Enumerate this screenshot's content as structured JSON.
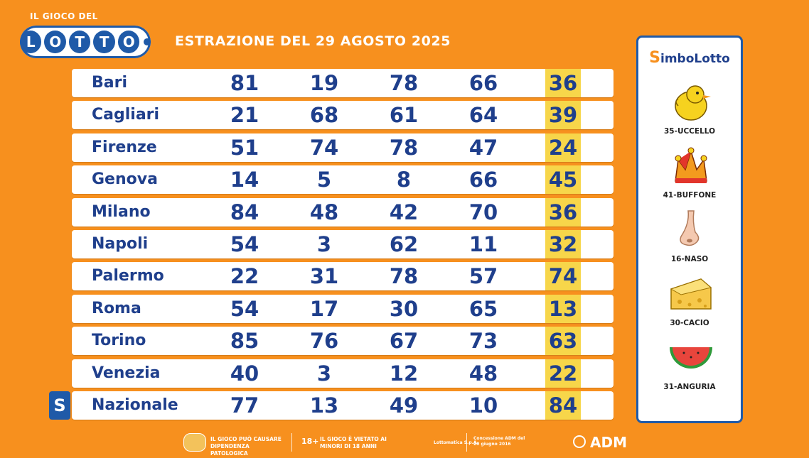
{
  "header": {
    "brand_small": "IL GIOCO DEL",
    "brand_letters": [
      "L",
      "O",
      "T",
      "T",
      "O"
    ],
    "draw_title": "ESTRAZIONE DEL 29 AGOSTO 2025"
  },
  "rows": [
    {
      "city": "Bari",
      "n": [
        "81",
        "19",
        "78",
        "66"
      ],
      "hl": "36"
    },
    {
      "city": "Cagliari",
      "n": [
        "21",
        "68",
        "61",
        "64"
      ],
      "hl": "39"
    },
    {
      "city": "Firenze",
      "n": [
        "51",
        "74",
        "78",
        "47"
      ],
      "hl": "24"
    },
    {
      "city": "Genova",
      "n": [
        "14",
        "5",
        "8",
        "66"
      ],
      "hl": "45"
    },
    {
      "city": "Milano",
      "n": [
        "84",
        "48",
        "42",
        "70"
      ],
      "hl": "36"
    },
    {
      "city": "Napoli",
      "n": [
        "54",
        "3",
        "62",
        "11"
      ],
      "hl": "32"
    },
    {
      "city": "Palermo",
      "n": [
        "22",
        "31",
        "78",
        "57"
      ],
      "hl": "74"
    },
    {
      "city": "Roma",
      "n": [
        "54",
        "17",
        "30",
        "65"
      ],
      "hl": "13"
    },
    {
      "city": "Torino",
      "n": [
        "85",
        "76",
        "67",
        "73"
      ],
      "hl": "63"
    },
    {
      "city": "Venezia",
      "n": [
        "40",
        "3",
        "12",
        "48"
      ],
      "hl": "22"
    },
    {
      "city": "Nazionale",
      "n": [
        "77",
        "13",
        "49",
        "10"
      ],
      "hl": "84"
    }
  ],
  "nazionale_badge": "S",
  "simbolotto": {
    "title_s": "S",
    "title_rest": "imboLotto",
    "symbols": [
      {
        "label": "35-UCCELLO",
        "icon": "chick-icon"
      },
      {
        "label": "41-BUFFONE",
        "icon": "jester-hat-icon"
      },
      {
        "label": "16-NASO",
        "icon": "nose-icon"
      },
      {
        "label": "30-CACIO",
        "icon": "cheese-icon"
      },
      {
        "label": "31-ANGURIA",
        "icon": "watermelon-icon"
      }
    ]
  },
  "footer": {
    "warn1": "IL GIOCO PUÒ CAUSARE DIPENDENZA PATOLOGICA",
    "age": "18+",
    "warn2": "IL GIOCO È VIETATO AI MINORI DI 18 ANNI",
    "small1": "Lottomatica S.p.A.",
    "small2": "Concessione ADM del 20 giugno 2016",
    "adm": "ADM"
  },
  "colors": {
    "background": "#f7901e",
    "navy": "#1f3f8c",
    "highlight": "#f7d64a",
    "brand_blue": "#1f5aa8"
  }
}
